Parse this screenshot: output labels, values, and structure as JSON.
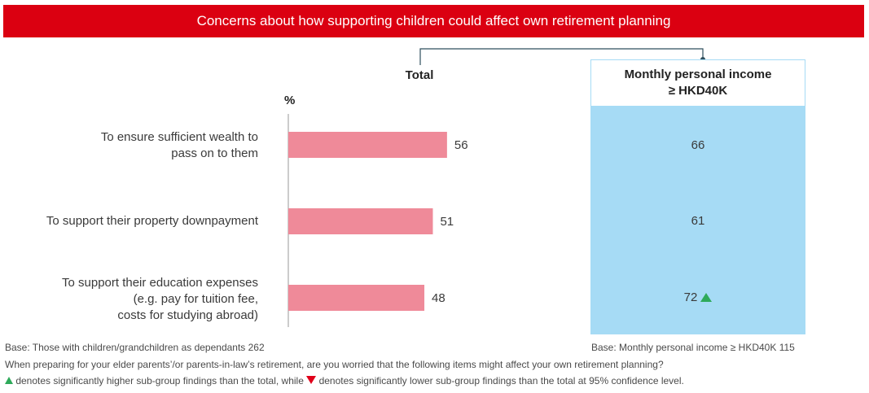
{
  "banner": {
    "title": "Concerns about how supporting children could affect own retirement planning"
  },
  "headers": {
    "total": "Total",
    "unit": "%",
    "income_line1": "Monthly personal income",
    "income_line2": "≥ HKD40K"
  },
  "rows": [
    {
      "line1": "To ensure sufficient wealth to",
      "line2": "pass on to them",
      "line3": ""
    },
    {
      "line1": "To support their property downpayment",
      "line2": "",
      "line3": ""
    },
    {
      "line1": "To support their education expenses",
      "line2": "(e.g. pay for tuition fee,",
      "line3": "costs for studying abroad)"
    }
  ],
  "colors": {
    "banner": "#db0011",
    "bar": "#ef8a99",
    "panel": "#a6dbf5",
    "higher_marker": "#2eaa5a",
    "lower_marker": "#e0001a"
  },
  "chart_data": {
    "type": "bar",
    "orientation": "horizontal",
    "categories": [
      "To ensure sufficient wealth to pass on to them",
      "To support their property downpayment",
      "To support their education expenses (e.g. pay for tuition fee, costs for studying abroad)"
    ],
    "series": [
      {
        "name": "Total",
        "values": [
          56,
          51,
          48
        ]
      },
      {
        "name": "Monthly personal income ≥ HKD40K",
        "values": [
          66,
          61,
          72
        ],
        "significance": [
          "",
          "",
          "higher"
        ]
      }
    ],
    "ylabel": "%",
    "grid": false
  },
  "footnotes": {
    "base_total": "Base: Those with children/grandchildren as dependants 262",
    "base_income": "Base: Monthly personal income ≥ HKD40K 115",
    "question": "When preparing for your elder parents’/or parents-in-law’s retirement, are you worried that the following items might affect your own retirement planning?",
    "legend_part1": " denotes significantly higher sub-group findings than the total, while ",
    "legend_part2": " denotes significantly lower sub-group findings than the total at 95% confidence level."
  }
}
